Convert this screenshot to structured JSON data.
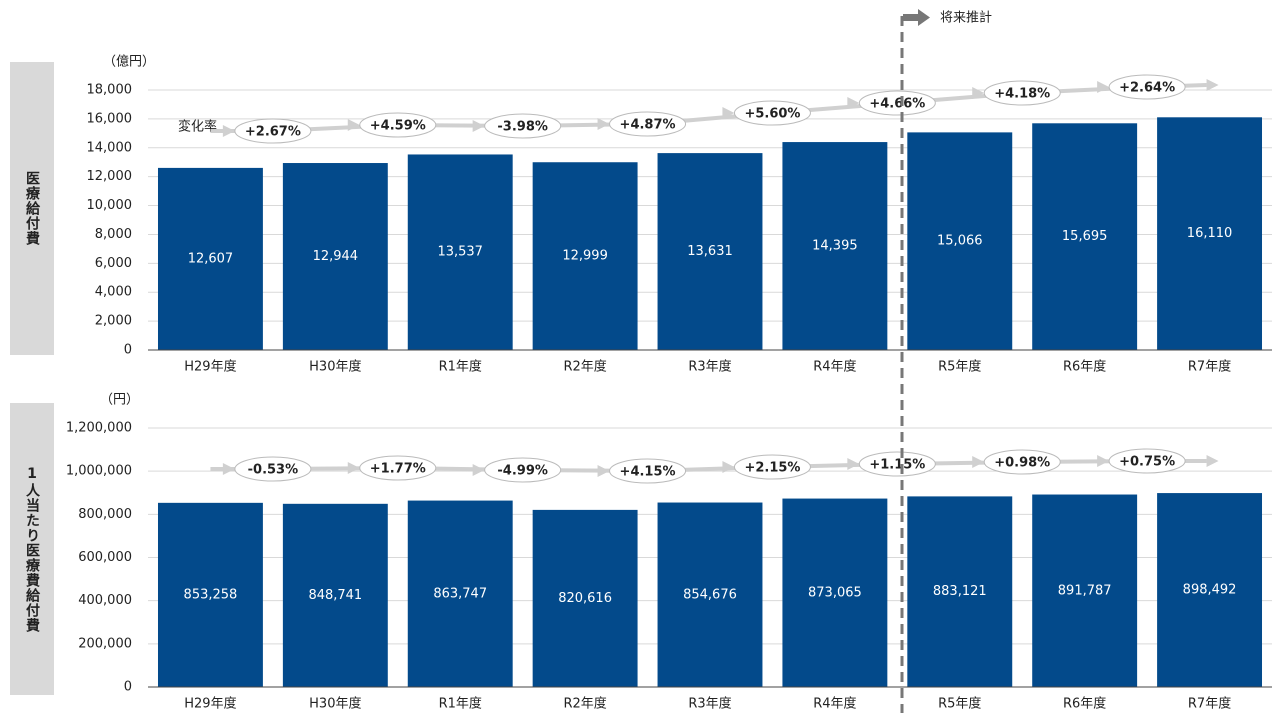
{
  "annotations": {
    "change_rate": "変化率",
    "forecast": "将来推計"
  },
  "chart_data": [
    {
      "type": "bar",
      "side_label": "医療給付費",
      "unit_label": "（億円）",
      "color": "#034a8b",
      "grid": true,
      "categories": [
        "H29年度",
        "H30年度",
        "R1年度",
        "R2年度",
        "R3年度",
        "R4年度",
        "R5年度",
        "R6年度",
        "R7年度"
      ],
      "values": [
        12607,
        12944,
        13537,
        12999,
        13631,
        14395,
        15066,
        15695,
        16110
      ],
      "value_labels": [
        "12,607",
        "12,944",
        "13,537",
        "12,999",
        "13,631",
        "14,395",
        "15,066",
        "15,695",
        "16,110"
      ],
      "change_labels": [
        "+2.67%",
        "+4.59%",
        "-3.98%",
        "+4.87%",
        "+5.60%",
        "+4.66%",
        "+4.18%",
        "+2.64%"
      ],
      "ylim": [
        0,
        18000
      ],
      "yticks": [
        0,
        {
          "value": 2000,
          "label": "2,000"
        },
        {
          "value": 4000,
          "label": "4,000"
        },
        {
          "value": 6000,
          "label": "6,000"
        },
        {
          "value": 8000,
          "label": "8,000"
        },
        {
          "value": 10000,
          "label": "10,000"
        },
        {
          "value": 12000,
          "label": "12,000"
        },
        {
          "value": 14000,
          "label": "14,000"
        },
        {
          "value": 16000,
          "label": "16,000"
        },
        {
          "value": 18000,
          "label": "18,000"
        }
      ]
    },
    {
      "type": "bar",
      "side_label": "1人当たり医療費給付費",
      "unit_label": "（円）",
      "color": "#034a8b",
      "grid": true,
      "categories": [
        "H29年度",
        "H30年度",
        "R1年度",
        "R2年度",
        "R3年度",
        "R4年度",
        "R5年度",
        "R6年度",
        "R7年度"
      ],
      "values": [
        853258,
        848741,
        863747,
        820616,
        854676,
        873065,
        883121,
        891787,
        898492
      ],
      "value_labels": [
        "853,258",
        "848,741",
        "863,747",
        "820,616",
        "854,676",
        "873,065",
        "883,121",
        "891,787",
        "898,492"
      ],
      "change_labels": [
        "-0.53%",
        "+1.77%",
        "-4.99%",
        "+4.15%",
        "+2.15%",
        "+1.15%",
        "+0.98%",
        "+0.75%"
      ],
      "ylim": [
        0,
        1200000
      ],
      "yticks": [
        0,
        {
          "value": 200000,
          "label": "200,000"
        },
        {
          "value": 400000,
          "label": "400,000"
        },
        {
          "value": 600000,
          "label": "600,000"
        },
        {
          "value": 800000,
          "label": "800,000"
        },
        {
          "value": 1000000,
          "label": "1,000,000"
        },
        {
          "value": 1200000,
          "label": "1,200,000"
        }
      ]
    }
  ]
}
